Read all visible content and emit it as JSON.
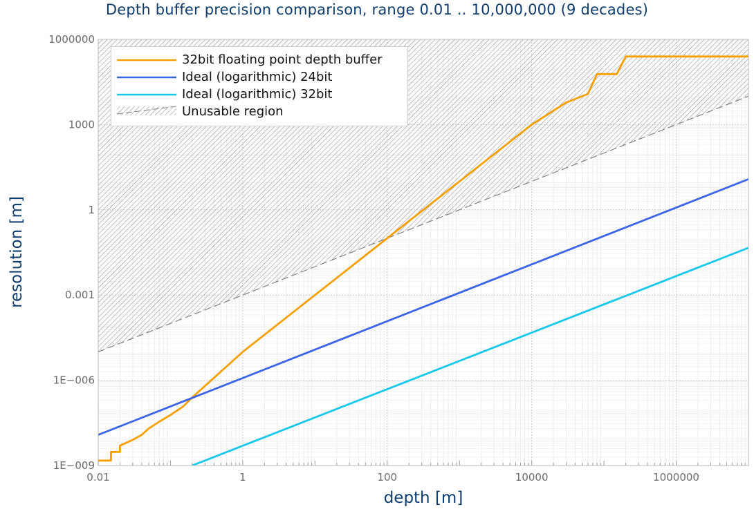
{
  "chart_data": {
    "type": "line",
    "title": "Depth buffer precision comparison, range 0.01 .. 10,000,000 (9 decades)",
    "xlabel": "depth [m]",
    "ylabel": "resolution [m]",
    "x_scale": "log",
    "y_scale": "log",
    "xlim": [
      0.01,
      10000000
    ],
    "ylim": [
      1e-09,
      1000000
    ],
    "x_ticks": [
      {
        "value": 0.01,
        "label": "0.01"
      },
      {
        "value": 1,
        "label": "1"
      },
      {
        "value": 100,
        "label": "100"
      },
      {
        "value": 10000,
        "label": "10000"
      },
      {
        "value": 1000000,
        "label": "1000000"
      }
    ],
    "y_ticks": [
      {
        "value": 1e-09,
        "label": "1E−009"
      },
      {
        "value": 1e-06,
        "label": "1E−006"
      },
      {
        "value": 0.001,
        "label": "0.001"
      },
      {
        "value": 1,
        "label": "1"
      },
      {
        "value": 1000,
        "label": "1000"
      },
      {
        "value": 1000000,
        "label": "1000000"
      }
    ],
    "grid": true,
    "legend_position": "top-left",
    "series": [
      {
        "name": "32bit floating point depth buffer",
        "color": "#f5a000",
        "style": "step",
        "x": [
          0.01,
          0.015,
          0.015,
          0.02,
          0.02,
          0.03,
          0.04,
          0.05,
          0.07,
          0.1,
          0.15,
          0.2,
          1,
          10,
          100,
          1000,
          10000,
          30000,
          60000,
          80000,
          150000,
          200000,
          10000000
        ],
        "y": [
          1.5e-09,
          1.5e-09,
          3e-09,
          3e-09,
          5e-09,
          8e-09,
          1.2e-08,
          2e-08,
          3.5e-08,
          6e-08,
          1.2e-07,
          2.5e-07,
          1e-05,
          0.001,
          0.1,
          10,
          1000,
          6000,
          12000,
          60000,
          60000,
          250000,
          250000
        ]
      },
      {
        "name": "Ideal (logarithmic) 24bit",
        "color": "#3c64e6",
        "x": [
          0.01,
          10000000
        ],
        "y": [
          1.2e-08,
          12
        ]
      },
      {
        "name": "Ideal (logarithmic) 32bit",
        "color": "#16c8ea",
        "x": [
          0.2,
          10000000
        ],
        "y": [
          1e-09,
          0.046
        ]
      },
      {
        "name": "Unusable region",
        "color": "#808080",
        "style": "dashed-hatched",
        "x": [
          0.01,
          10000000
        ],
        "y": [
          1e-05,
          10000
        ]
      }
    ]
  }
}
